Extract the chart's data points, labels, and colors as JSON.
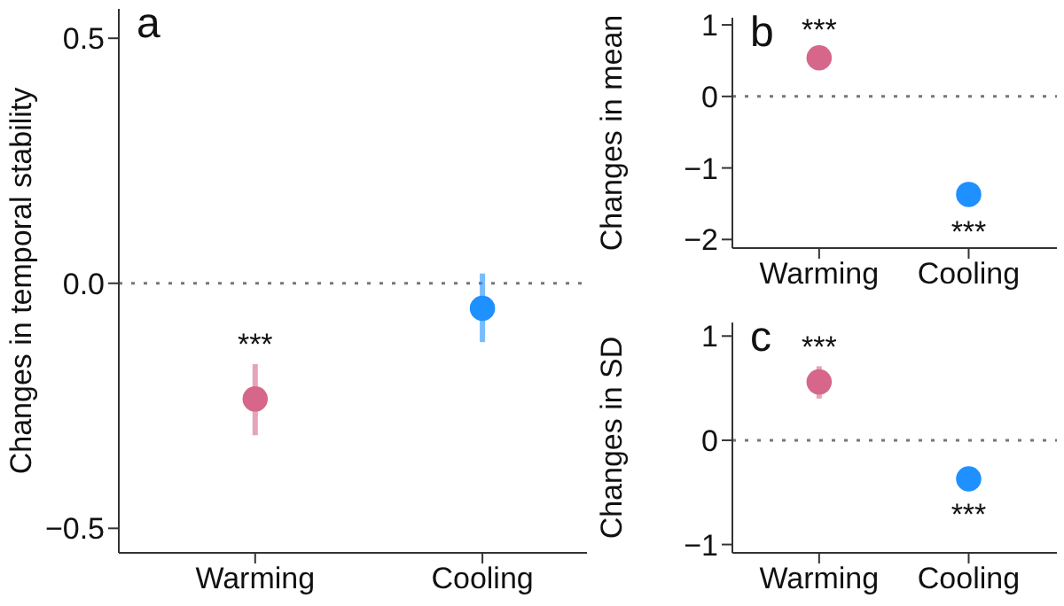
{
  "chart_data": [
    {
      "type": "scatter",
      "title": "a",
      "ylabel": "Changes in temporal stability",
      "categories": [
        "Warming",
        "Cooling"
      ],
      "values": [
        -0.236,
        -0.051
      ],
      "colors": [
        "#d6668a",
        "#1e90ff"
      ],
      "errors": [
        [
          -0.31,
          -0.165
        ],
        [
          -0.12,
          0.02
        ]
      ],
      "marker": "circle",
      "ylim": [
        -0.55,
        0.56
      ],
      "yticks": [
        {
          "value": -0.5,
          "label": "−0.5"
        },
        {
          "value": 0,
          "label": "0.0"
        },
        0.5
      ],
      "ref_lines": [
        {
          "axis": "y",
          "value": 0,
          "line_style": "dotted",
          "color": "#777777"
        }
      ],
      "annotations": [
        {
          "text": "***",
          "x": "Warming",
          "y": -0.236
        }
      ]
    },
    {
      "type": "scatter",
      "title": "b",
      "ylabel": "Changes in mean",
      "categories": [
        "Warming",
        "Cooling"
      ],
      "values": [
        0.54,
        -1.37
      ],
      "colors": [
        "#d6668a",
        "#1e90ff"
      ],
      "errors": [
        null,
        [
          -1.47,
          -1.25
        ]
      ],
      "marker": "circle",
      "ylim": [
        -2.12,
        1.1
      ],
      "yticks": [
        {
          "value": -2,
          "label": "−2"
        },
        {
          "value": -1,
          "label": "−1"
        },
        0,
        1
      ],
      "ref_lines": [
        {
          "axis": "y",
          "value": 0,
          "line_style": "dotted",
          "color": "#777777"
        }
      ],
      "annotations": [
        {
          "text": "***",
          "x": "Warming",
          "y": 0.54
        },
        {
          "text": "***",
          "x": "Cooling",
          "y": -1.37
        }
      ]
    },
    {
      "type": "scatter",
      "title": "c",
      "ylabel": "Changes in SD",
      "categories": [
        "Warming",
        "Cooling"
      ],
      "values": [
        0.56,
        -0.37
      ],
      "colors": [
        "#d6668a",
        "#1e90ff"
      ],
      "errors": [
        [
          0.4,
          0.71
        ],
        null
      ],
      "marker": "circle",
      "ylim": [
        -1.08,
        1.13
      ],
      "yticks": [
        {
          "value": -1,
          "label": "−1"
        },
        0,
        1
      ],
      "ref_lines": [
        {
          "axis": "y",
          "value": 0,
          "line_style": "dotted",
          "color": "#777777"
        }
      ],
      "annotations": [
        {
          "text": "***",
          "x": "Warming",
          "y": 0.56
        },
        {
          "text": "***",
          "x": "Cooling",
          "y": -0.37
        }
      ]
    }
  ]
}
